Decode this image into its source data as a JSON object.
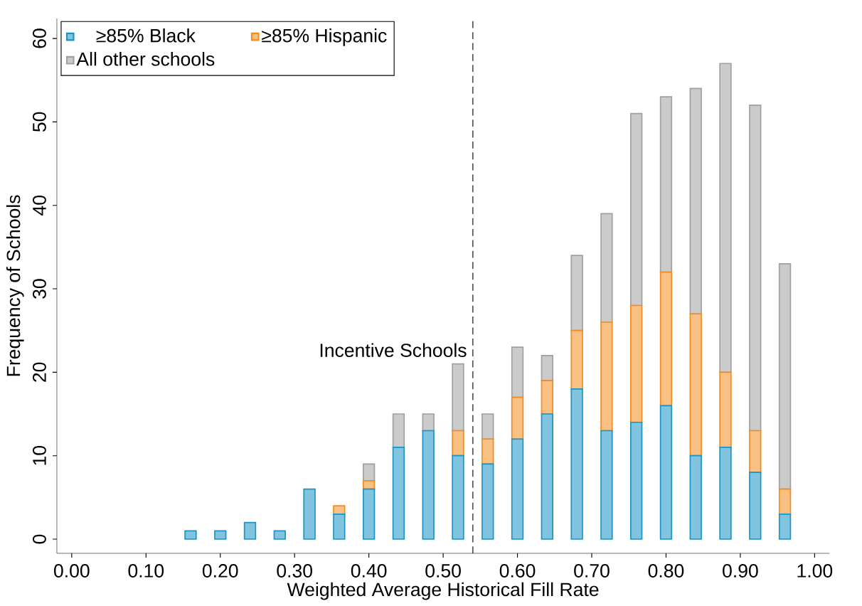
{
  "chart_data": {
    "type": "bar",
    "stacked": true,
    "xlabel": "Weighted Average Historical Fill Rate",
    "ylabel": "Frequency of Schools",
    "x": [
      0.16,
      0.2,
      0.24,
      0.28,
      0.32,
      0.36,
      0.4,
      0.44,
      0.48,
      0.52,
      0.56,
      0.6,
      0.64,
      0.68,
      0.72,
      0.76,
      0.8,
      0.84,
      0.88,
      0.92,
      0.96
    ],
    "series": [
      {
        "name": "≥85% Black",
        "color": "#1a94c4",
        "values": [
          1,
          1,
          2,
          1,
          6,
          3,
          6,
          11,
          13,
          10,
          9,
          12,
          15,
          18,
          13,
          14,
          16,
          10,
          11,
          8,
          3
        ]
      },
      {
        "name": "≥85% Hispanic",
        "color": "#f28c1e",
        "values": [
          0,
          0,
          0,
          0,
          0,
          1,
          1,
          0,
          0,
          3,
          3,
          5,
          4,
          7,
          13,
          14,
          16,
          17,
          9,
          5,
          3
        ]
      },
      {
        "name": "All other schools",
        "color": "#a0a0a0",
        "values": [
          0,
          0,
          0,
          0,
          0,
          0,
          2,
          4,
          2,
          8,
          3,
          6,
          3,
          9,
          13,
          23,
          21,
          27,
          37,
          39,
          27
        ]
      }
    ],
    "xlim": [
      -0.02,
      1.02
    ],
    "ylim": [
      -1.7,
      62.4
    ],
    "xticks": [
      {
        "value": 0,
        "label": "0.00"
      },
      {
        "value": 0.1,
        "label": "0.10"
      },
      {
        "value": 0.2,
        "label": "0.20"
      },
      {
        "value": 0.3,
        "label": "0.30"
      },
      {
        "value": 0.4,
        "label": "0.40"
      },
      {
        "value": 0.5,
        "label": "0.50"
      },
      {
        "value": 0.6,
        "label": "0.60"
      },
      {
        "value": 0.7,
        "label": "0.70"
      },
      {
        "value": 0.8,
        "label": "0.80"
      },
      {
        "value": 0.9,
        "label": "0.90"
      },
      {
        "value": 1,
        "label": "1.00"
      }
    ],
    "yticks": [
      0,
      10,
      20,
      30,
      40,
      50,
      60
    ],
    "ref_lines": [
      {
        "axis": "x",
        "value": 0.54,
        "label": "Incentive Schools",
        "line_style": "dashed",
        "color": "#000000"
      }
    ],
    "legend": "top left",
    "grid": false
  }
}
